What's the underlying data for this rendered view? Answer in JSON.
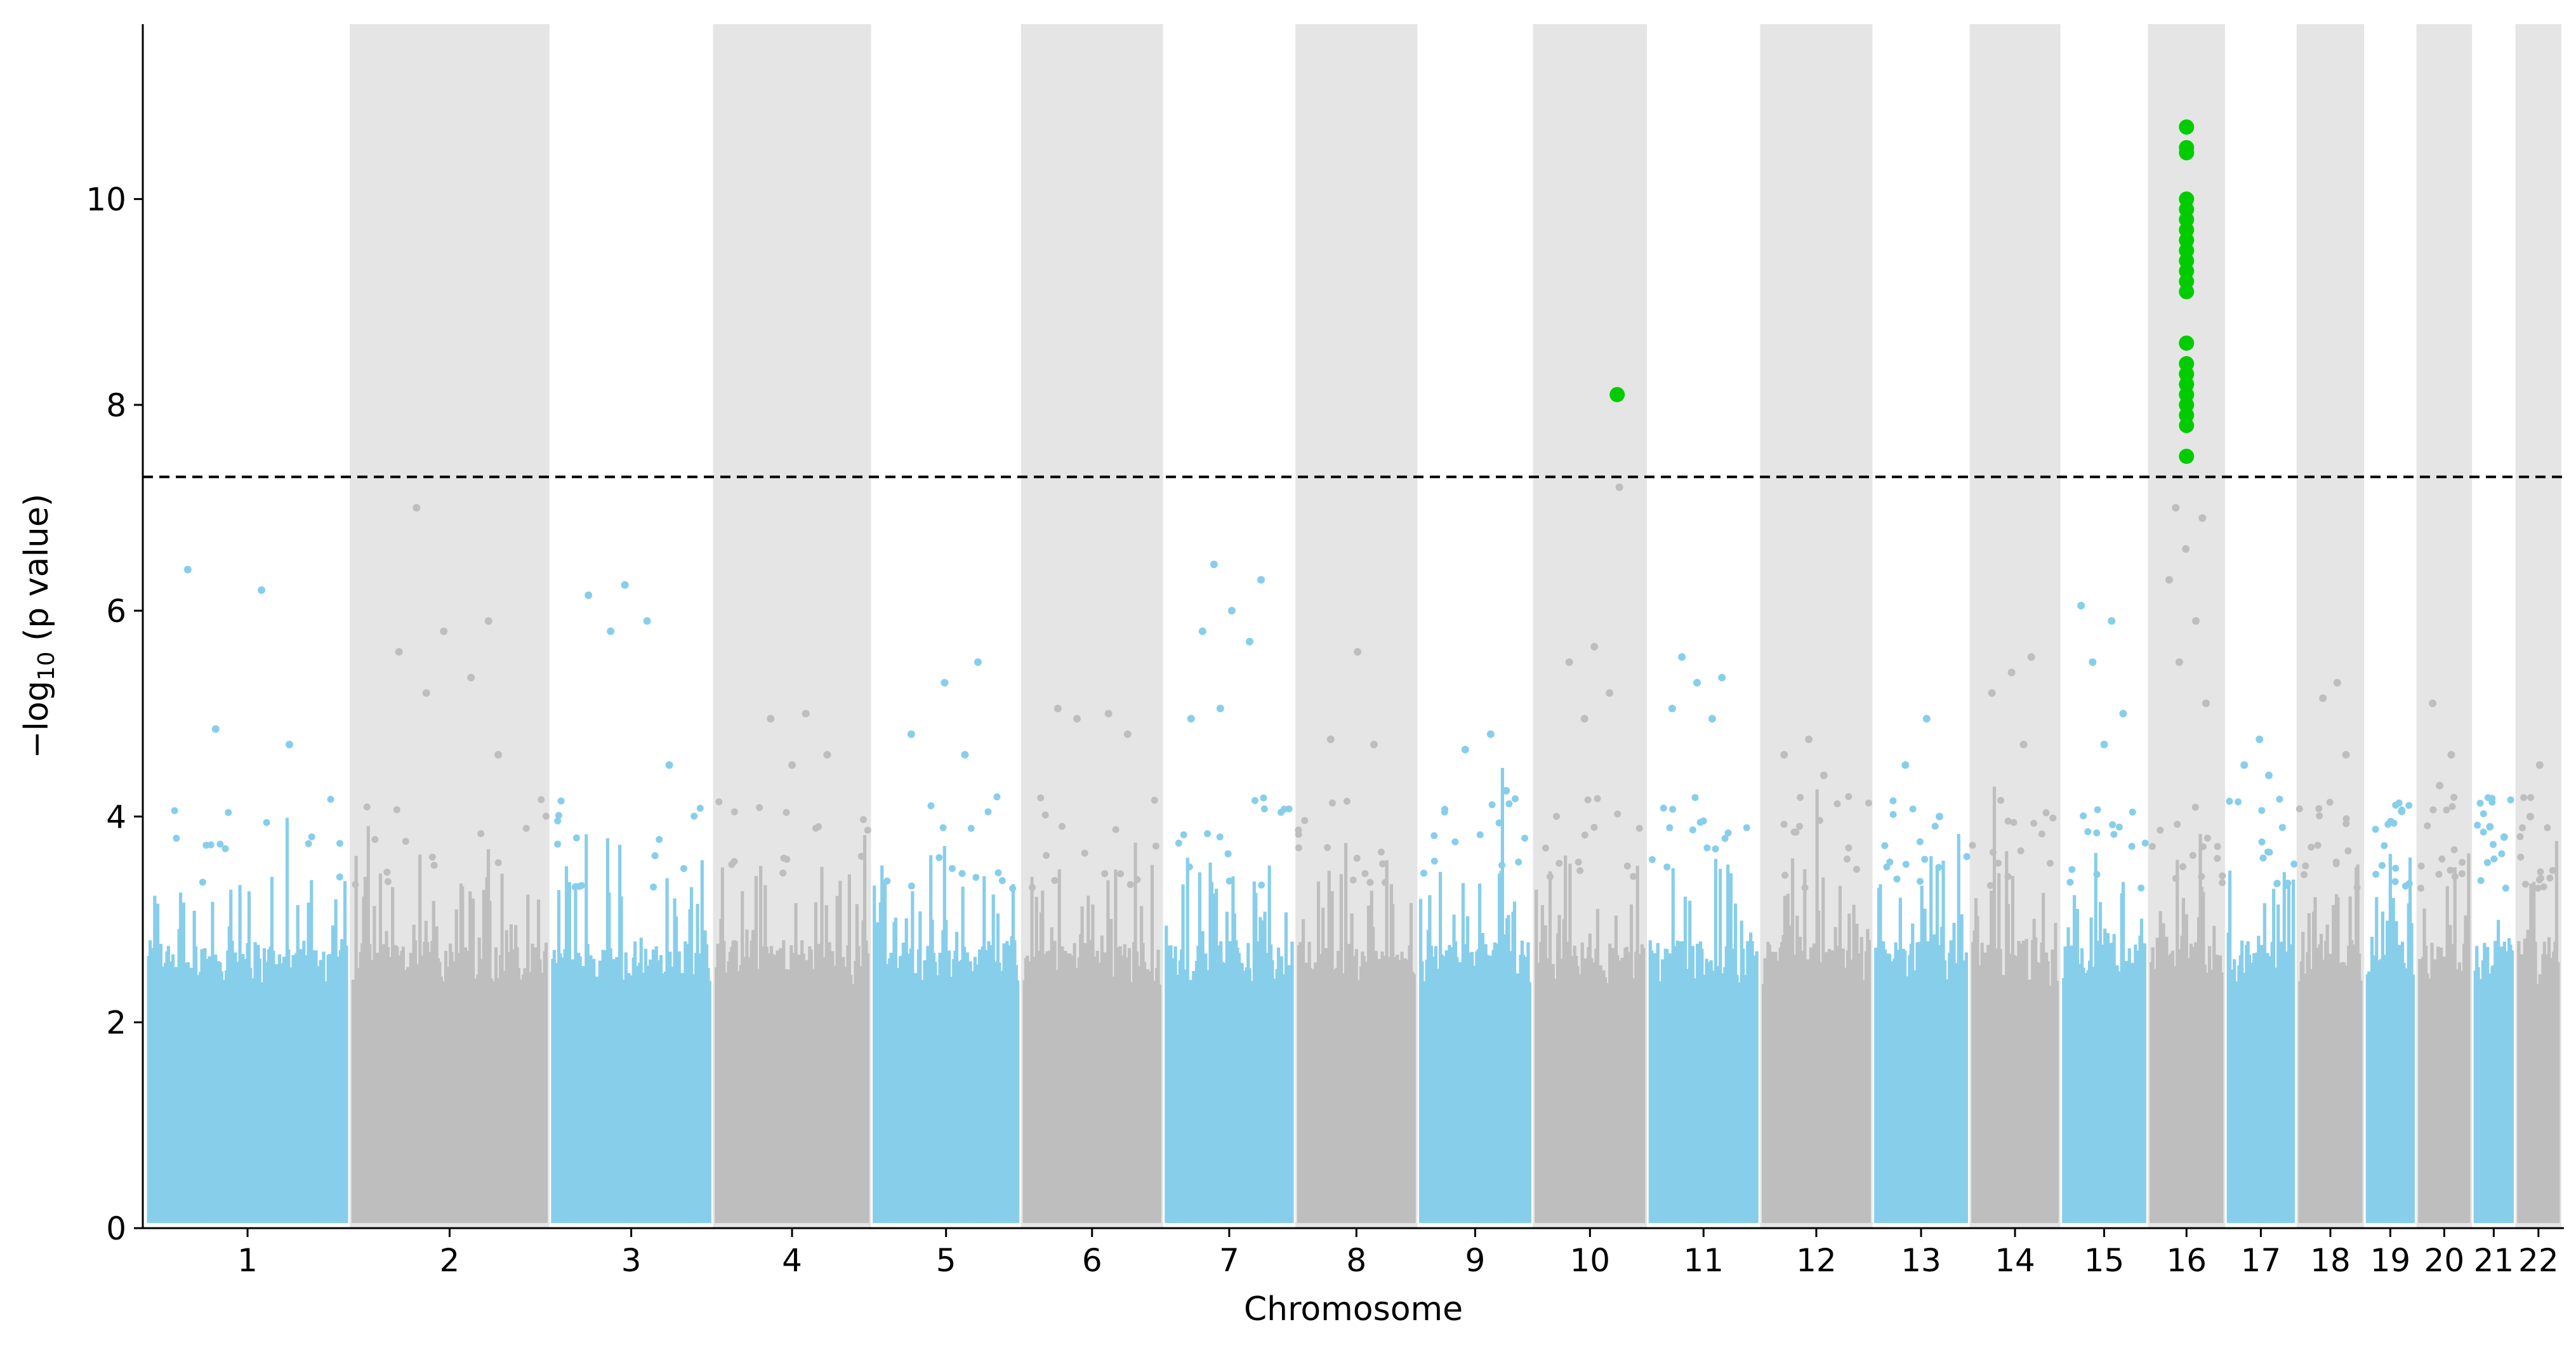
{
  "chart_data": {
    "type": "scatter",
    "subtype": "manhattan",
    "title": "",
    "xlabel": "Chromosome",
    "ylabel_main": "−log",
    "ylabel_sub": "10",
    "ylabel_rest": " (p value)",
    "ylim": [
      0,
      11.7
    ],
    "yticks": [
      0,
      2,
      4,
      6,
      8,
      10
    ],
    "significance_threshold": 7.3,
    "grid": false,
    "legend": "none",
    "colors": {
      "odd": "#87CEEB",
      "even": "#BEBEBE",
      "significant": "#00CC00",
      "band": "#E5E5E5",
      "threshold": "#000000"
    },
    "chromosomes": [
      {
        "label": "1",
        "length": 249
      },
      {
        "label": "2",
        "length": 243
      },
      {
        "label": "3",
        "length": 198
      },
      {
        "label": "4",
        "length": 191
      },
      {
        "label": "5",
        "length": 181
      },
      {
        "label": "6",
        "length": 171
      },
      {
        "label": "7",
        "length": 159
      },
      {
        "label": "8",
        "length": 146
      },
      {
        "label": "9",
        "length": 138
      },
      {
        "label": "10",
        "length": 136
      },
      {
        "label": "11",
        "length": 135
      },
      {
        "label": "12",
        "length": 134
      },
      {
        "label": "13",
        "length": 115
      },
      {
        "label": "14",
        "length": 107
      },
      {
        "label": "15",
        "length": 103
      },
      {
        "label": "16",
        "length": 90
      },
      {
        "label": "17",
        "length": 83
      },
      {
        "label": "18",
        "length": 78
      },
      {
        "label": "19",
        "length": 59
      },
      {
        "label": "20",
        "length": 63
      },
      {
        "label": "21",
        "length": 48
      },
      {
        "label": "22",
        "length": 51
      }
    ],
    "top_hits": [
      {
        "chr": "1",
        "values": [
          6.4,
          6.2,
          4.85,
          4.7
        ]
      },
      {
        "chr": "2",
        "values": [
          7.0,
          5.9,
          5.8,
          5.6,
          5.35,
          5.2,
          4.6
        ]
      },
      {
        "chr": "3",
        "values": [
          6.25,
          6.15,
          5.9,
          5.8,
          4.5
        ]
      },
      {
        "chr": "4",
        "values": [
          5.0,
          4.95,
          4.6,
          4.5
        ]
      },
      {
        "chr": "5",
        "values": [
          5.5,
          5.3,
          4.8,
          4.6
        ]
      },
      {
        "chr": "6",
        "values": [
          5.05,
          5.0,
          4.95,
          4.8
        ]
      },
      {
        "chr": "7",
        "values": [
          6.45,
          6.3,
          6.0,
          5.8,
          5.7,
          5.05,
          4.95
        ]
      },
      {
        "chr": "8",
        "values": [
          5.6,
          4.75,
          4.7
        ]
      },
      {
        "chr": "9",
        "values": [
          4.8,
          4.65,
          4.25
        ]
      },
      {
        "chr": "10",
        "values": [
          7.2,
          5.65,
          5.5,
          5.2,
          4.95
        ]
      },
      {
        "chr": "11",
        "values": [
          5.55,
          5.35,
          5.3,
          5.05,
          4.95
        ]
      },
      {
        "chr": "12",
        "values": [
          4.75,
          4.6,
          4.4
        ]
      },
      {
        "chr": "13",
        "values": [
          4.95,
          4.5,
          4.0
        ]
      },
      {
        "chr": "14",
        "values": [
          5.55,
          5.4,
          5.2,
          4.7
        ]
      },
      {
        "chr": "15",
        "values": [
          6.05,
          5.9,
          5.5,
          5.0,
          4.7
        ]
      },
      {
        "chr": "16",
        "values": [
          7.0,
          6.9,
          6.6,
          6.3,
          5.9,
          5.5,
          5.1
        ]
      },
      {
        "chr": "17",
        "values": [
          4.75,
          4.5,
          4.4
        ]
      },
      {
        "chr": "18",
        "values": [
          5.3,
          5.15,
          4.6
        ]
      },
      {
        "chr": "19",
        "values": [
          4.05,
          3.95
        ]
      },
      {
        "chr": "20",
        "values": [
          5.1,
          4.6,
          4.3
        ]
      },
      {
        "chr": "21",
        "values": [
          3.9,
          3.8
        ]
      },
      {
        "chr": "22",
        "values": [
          4.5,
          4.0
        ]
      }
    ],
    "significant_hits": [
      {
        "chr": "10",
        "pos": 0.75,
        "value": 8.1
      },
      {
        "chr": "16",
        "pos": 0.5,
        "values": [
          10.7,
          10.5,
          10.45,
          10.0,
          9.9,
          9.8,
          9.7,
          9.6,
          9.5,
          9.4,
          9.3,
          9.2,
          9.1,
          8.6,
          8.4,
          8.3,
          8.2,
          8.1,
          8.0,
          7.9,
          7.8,
          7.5
        ]
      }
    ]
  }
}
